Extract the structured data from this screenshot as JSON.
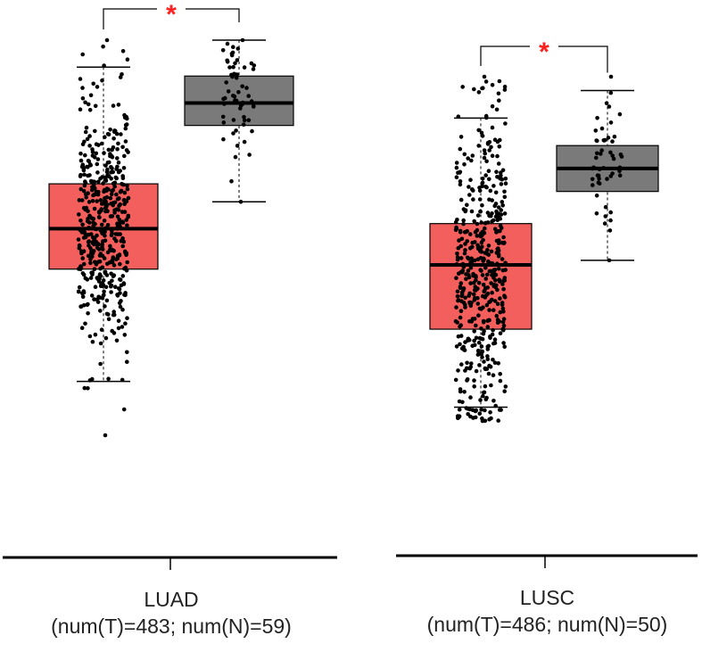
{
  "chart_data": [
    {
      "type": "box",
      "cancer": "LUAD",
      "counts": "(num(T)=483; num(N)=59)",
      "significance": "*",
      "groups": [
        {
          "group": "T",
          "n": 483,
          "color": "#f25f5c",
          "whisker_low": 2.2,
          "q1": 4.7,
          "median": 5.6,
          "q3": 6.6,
          "whisker_high": 9.2,
          "min": 1.0,
          "max": 9.8
        },
        {
          "group": "N",
          "n": 59,
          "color": "#7a7a7a",
          "whisker_low": 6.2,
          "q1": 7.9,
          "median": 8.4,
          "q3": 9.0,
          "whisker_high": 9.8,
          "min": 6.2,
          "max": 9.8
        }
      ]
    },
    {
      "type": "box",
      "cancer": "LUSC",
      "counts": "(num(T)=486; num(N)=50)",
      "significance": "*",
      "groups": [
        {
          "group": "T",
          "n": 486,
          "color": "#f25f5c",
          "whisker_low": 1.5,
          "q1": 3.2,
          "median": 4.6,
          "q3": 5.5,
          "whisker_high": 7.8,
          "min": 1.2,
          "max": 8.7
        },
        {
          "group": "N",
          "n": 50,
          "color": "#7a7a7a",
          "whisker_low": 4.7,
          "q1": 6.2,
          "median": 6.7,
          "q3": 7.2,
          "whisker_high": 8.4,
          "min": 4.7,
          "max": 8.7
        }
      ]
    }
  ]
}
